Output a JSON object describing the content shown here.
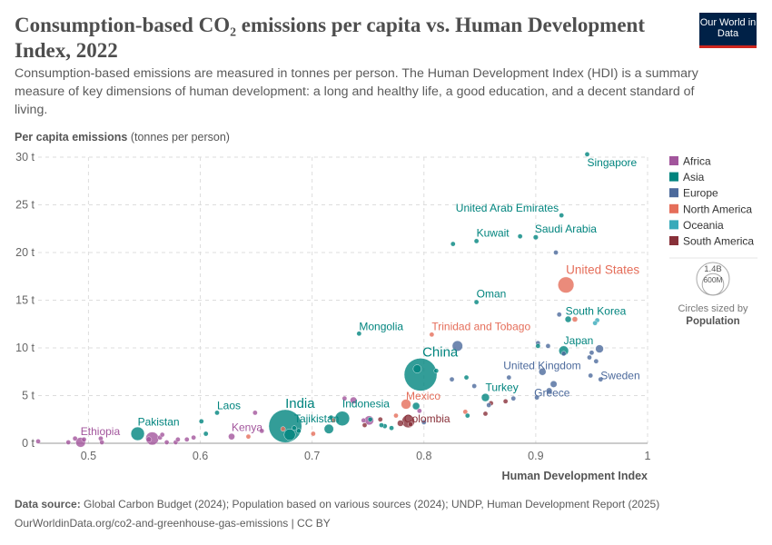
{
  "header": {
    "title": "Consumption-based CO₂ emissions per capita vs. Human Development Index, 2022",
    "subtitle": "Consumption-based emissions are measured in tonnes per person. The Human Development Index (HDI) is a summary measure of key dimensions of human development: a long and healthy life, a good education, and a decent standard of living.",
    "logo_text": "Our World in Data"
  },
  "footer": {
    "source_label": "Data source:",
    "source": "Global Carbon Budget (2024); Population based on various sources (2024); UNDP, Human Development Report (2025)",
    "url": "OurWorldinData.org/co2-and-greenhouse-gas-emissions | CC BY"
  },
  "chart_data": {
    "type": "scatter",
    "title": "Consumption-based CO₂ emissions per capita vs. Human Development Index, 2022",
    "ylabel_bold": "Per capita emissions",
    "ylabel_unit": "(tonnes per person)",
    "xlabel": "Human Development Index",
    "xlim": [
      0.455,
      1
    ],
    "ylim": [
      0,
      30
    ],
    "x_ticks": [
      "0.5",
      "0.6",
      "0.7",
      "0.8",
      "0.9",
      "1"
    ],
    "y_ticks": [
      "0 t",
      "5 t",
      "10 t",
      "15 t",
      "20 t",
      "25 t",
      "30 t"
    ],
    "grid": true,
    "legend_position": "right",
    "regions": [
      {
        "name": "Africa",
        "color": "#a2559c"
      },
      {
        "name": "Asia",
        "color": "#00847e"
      },
      {
        "name": "Europe",
        "color": "#4c6a9c"
      },
      {
        "name": "North America",
        "color": "#e56e5a"
      },
      {
        "name": "Oceania",
        "color": "#38aaba"
      },
      {
        "name": "South America",
        "color": "#883039"
      }
    ],
    "size_legend": {
      "title": "Circles sized by",
      "variable": "Population",
      "values": [
        "1.4B",
        "600M"
      ]
    },
    "points": [
      {
        "label": "Singapore",
        "region": "Asia",
        "x": 0.946,
        "y": 30.3,
        "pop_m": 6
      },
      {
        "label": "United Arab Emirates",
        "region": "Asia",
        "x": 0.923,
        "y": 23.9,
        "pop_m": 10
      },
      {
        "label": "Kuwait",
        "region": "Asia",
        "x": 0.847,
        "y": 21.2,
        "pop_m": 4
      },
      {
        "label": "Saudi Arabia",
        "region": "Asia",
        "x": 0.9,
        "y": 21.6,
        "pop_m": 33
      },
      {
        "label": "United States",
        "region": "North America",
        "x": 0.927,
        "y": 16.6,
        "pop_m": 335
      },
      {
        "label": "Oman",
        "region": "Asia",
        "x": 0.847,
        "y": 14.8,
        "pop_m": 5
      },
      {
        "label": "South Korea",
        "region": "Asia",
        "x": 0.929,
        "y": 13.0,
        "pop_m": 52
      },
      {
        "label": "Mongolia",
        "region": "Asia",
        "x": 0.742,
        "y": 11.5,
        "pop_m": 3
      },
      {
        "label": "Trinidad and Tobago",
        "region": "North America",
        "x": 0.807,
        "y": 11.4,
        "pop_m": 1.5
      },
      {
        "label": "China",
        "region": "Asia",
        "x": 0.797,
        "y": 7.2,
        "pop_m": 1410
      },
      {
        "label": "Japan",
        "region": "Asia",
        "x": 0.925,
        "y": 9.7,
        "pop_m": 124
      },
      {
        "label": "United Kingdom",
        "region": "Europe",
        "x": 0.906,
        "y": 7.5,
        "pop_m": 68
      },
      {
        "label": "Sweden",
        "region": "Europe",
        "x": 0.958,
        "y": 6.7,
        "pop_m": 10
      },
      {
        "label": "Greece",
        "region": "Europe",
        "x": 0.901,
        "y": 4.8,
        "pop_m": 10
      },
      {
        "label": "Turkey",
        "region": "Asia",
        "x": 0.855,
        "y": 4.8,
        "pop_m": 85
      },
      {
        "label": "Mexico",
        "region": "North America",
        "x": 0.784,
        "y": 4.1,
        "pop_m": 128
      },
      {
        "label": "Colombia",
        "region": "South America",
        "x": 0.779,
        "y": 2.1,
        "pop_m": 52
      },
      {
        "label": "Indonesia",
        "region": "Asia",
        "x": 0.727,
        "y": 2.6,
        "pop_m": 277
      },
      {
        "label": "India",
        "region": "Asia",
        "x": 0.676,
        "y": 1.8,
        "pop_m": 1430
      },
      {
        "label": "Tajikistan",
        "region": "Asia",
        "x": 0.684,
        "y": 1.6,
        "pop_m": 10
      },
      {
        "label": "Pakistan",
        "region": "Asia",
        "x": 0.544,
        "y": 1.0,
        "pop_m": 240
      },
      {
        "label": "Ethiopia",
        "region": "Africa",
        "x": 0.493,
        "y": 0.1,
        "pop_m": 126
      },
      {
        "label": "Kenya",
        "region": "Africa",
        "x": 0.628,
        "y": 0.7,
        "pop_m": 55
      },
      {
        "label": "Laos",
        "region": "Asia",
        "x": 0.615,
        "y": 3.2,
        "pop_m": 7.6
      },
      {
        "region": "Asia",
        "x": 0.826,
        "y": 20.9,
        "pop_m": 1.5
      },
      {
        "region": "Asia",
        "x": 0.886,
        "y": 21.7,
        "pop_m": 3
      },
      {
        "region": "Europe",
        "x": 0.918,
        "y": 20.0,
        "pop_m": 0.6
      },
      {
        "region": "Europe",
        "x": 0.921,
        "y": 13.5,
        "pop_m": 2
      },
      {
        "region": "North America",
        "x": 0.935,
        "y": 13.0,
        "pop_m": 39
      },
      {
        "region": "Oceania",
        "x": 0.955,
        "y": 12.9,
        "pop_m": 27
      },
      {
        "region": "Oceania",
        "x": 0.953,
        "y": 12.6,
        "pop_m": 5
      },
      {
        "region": "Europe",
        "x": 0.83,
        "y": 10.2,
        "pop_m": 144
      },
      {
        "region": "Europe",
        "x": 0.957,
        "y": 9.9,
        "pop_m": 84
      },
      {
        "region": "Europe",
        "x": 0.902,
        "y": 10.5,
        "pop_m": 3
      },
      {
        "region": "Asia",
        "x": 0.902,
        "y": 10.2,
        "pop_m": 3
      },
      {
        "region": "Europe",
        "x": 0.911,
        "y": 10.2,
        "pop_m": 2
      },
      {
        "region": "Europe",
        "x": 0.925,
        "y": 9.4,
        "pop_m": 5
      },
      {
        "region": "Europe",
        "x": 0.95,
        "y": 9.5,
        "pop_m": 5
      },
      {
        "region": "Europe",
        "x": 0.948,
        "y": 9.0,
        "pop_m": 5
      },
      {
        "region": "Europe",
        "x": 0.954,
        "y": 8.6,
        "pop_m": 6
      },
      {
        "region": "Asia",
        "x": 0.794,
        "y": 7.8,
        "pop_m": 90
      },
      {
        "region": "Asia",
        "x": 0.811,
        "y": 7.6,
        "pop_m": 8
      },
      {
        "region": "Europe",
        "x": 0.949,
        "y": 7.1,
        "pop_m": 17
      },
      {
        "region": "Europe",
        "x": 0.876,
        "y": 6.9,
        "pop_m": 2
      },
      {
        "region": "Europe",
        "x": 0.825,
        "y": 6.7,
        "pop_m": 2
      },
      {
        "region": "Asia",
        "x": 0.838,
        "y": 6.9,
        "pop_m": 3
      },
      {
        "region": "Europe",
        "x": 0.845,
        "y": 6.0,
        "pop_m": 5
      },
      {
        "region": "Europe",
        "x": 0.916,
        "y": 6.2,
        "pop_m": 59
      },
      {
        "region": "Europe",
        "x": 0.912,
        "y": 5.5,
        "pop_m": 48
      },
      {
        "region": "Europe",
        "x": 0.88,
        "y": 4.7,
        "pop_m": 3
      },
      {
        "region": "Europe",
        "x": 0.858,
        "y": 4.0,
        "pop_m": 3
      },
      {
        "region": "South America",
        "x": 0.86,
        "y": 4.2,
        "pop_m": 19
      },
      {
        "region": "South America",
        "x": 0.873,
        "y": 4.4,
        "pop_m": 3
      },
      {
        "region": "South America",
        "x": 0.855,
        "y": 3.1,
        "pop_m": 3
      },
      {
        "region": "North America",
        "x": 0.837,
        "y": 3.3,
        "pop_m": 3
      },
      {
        "region": "Asia",
        "x": 0.839,
        "y": 2.9,
        "pop_m": 3
      },
      {
        "region": "Asia",
        "x": 0.793,
        "y": 3.9,
        "pop_m": 70
      },
      {
        "region": "Africa",
        "x": 0.796,
        "y": 3.4,
        "pop_m": 1
      },
      {
        "region": "South America",
        "x": 0.786,
        "y": 2.3,
        "pop_m": 216
      },
      {
        "region": "South America",
        "x": 0.788,
        "y": 2.0,
        "pop_m": 10
      },
      {
        "region": "South America",
        "x": 0.761,
        "y": 2.5,
        "pop_m": 3
      },
      {
        "region": "North America",
        "x": 0.775,
        "y": 2.9,
        "pop_m": 3
      },
      {
        "region": "Europe",
        "x": 0.8,
        "y": 2.2,
        "pop_m": 2
      },
      {
        "region": "Asia",
        "x": 0.765,
        "y": 1.8,
        "pop_m": 30
      },
      {
        "region": "Asia",
        "x": 0.771,
        "y": 1.6,
        "pop_m": 3
      },
      {
        "region": "Africa",
        "x": 0.455,
        "y": 0.2,
        "pop_m": 5
      },
      {
        "region": "Africa",
        "x": 0.482,
        "y": 0.1,
        "pop_m": 8
      },
      {
        "region": "Africa",
        "x": 0.488,
        "y": 0.5,
        "pop_m": 10
      },
      {
        "region": "Africa",
        "x": 0.496,
        "y": 0.4,
        "pop_m": 8
      },
      {
        "region": "Africa",
        "x": 0.511,
        "y": 0.5,
        "pop_m": 5
      },
      {
        "region": "Africa",
        "x": 0.512,
        "y": 0.1,
        "pop_m": 5
      },
      {
        "region": "Africa",
        "x": 0.557,
        "y": 0.5,
        "pop_m": 224
      },
      {
        "region": "Africa",
        "x": 0.554,
        "y": 0.4,
        "pop_m": 40
      },
      {
        "region": "Africa",
        "x": 0.564,
        "y": 0.6,
        "pop_m": 15
      },
      {
        "region": "Africa",
        "x": 0.566,
        "y": 0.9,
        "pop_m": 5
      },
      {
        "region": "Africa",
        "x": 0.57,
        "y": 0.1,
        "pop_m": 5
      },
      {
        "region": "Africa",
        "x": 0.578,
        "y": 0.1,
        "pop_m": 20
      },
      {
        "region": "Africa",
        "x": 0.58,
        "y": 0.4,
        "pop_m": 10
      },
      {
        "region": "Africa",
        "x": 0.588,
        "y": 0.4,
        "pop_m": 5
      },
      {
        "region": "Africa",
        "x": 0.594,
        "y": 0.6,
        "pop_m": 5
      },
      {
        "region": "Asia",
        "x": 0.601,
        "y": 2.3,
        "pop_m": 5
      },
      {
        "region": "Asia",
        "x": 0.605,
        "y": 1.0,
        "pop_m": 30
      },
      {
        "region": "North America",
        "x": 0.643,
        "y": 0.7,
        "pop_m": 3
      },
      {
        "region": "Africa",
        "x": 0.649,
        "y": 3.2,
        "pop_m": 3
      },
      {
        "region": "Africa",
        "x": 0.655,
        "y": 1.3,
        "pop_m": 3
      },
      {
        "region": "North America",
        "x": 0.674,
        "y": 1.5,
        "pop_m": 3
      },
      {
        "region": "Asia",
        "x": 0.68,
        "y": 0.9,
        "pop_m": 171
      },
      {
        "region": "Asia",
        "x": 0.688,
        "y": 1.3,
        "pop_m": 10
      },
      {
        "region": "North America",
        "x": 0.701,
        "y": 1.0,
        "pop_m": 3
      },
      {
        "region": "Asia",
        "x": 0.715,
        "y": 1.5,
        "pop_m": 117
      },
      {
        "region": "Asia",
        "x": 0.717,
        "y": 2.7,
        "pop_m": 5
      },
      {
        "region": "North America",
        "x": 0.719,
        "y": 2.4,
        "pop_m": 3
      },
      {
        "region": "Africa",
        "x": 0.729,
        "y": 4.7,
        "pop_m": 3
      },
      {
        "region": "Africa",
        "x": 0.737,
        "y": 4.5,
        "pop_m": 60
      },
      {
        "region": "Africa",
        "x": 0.746,
        "y": 2.4,
        "pop_m": 5
      },
      {
        "region": "Africa",
        "x": 0.751,
        "y": 2.4,
        "pop_m": 112
      },
      {
        "region": "Asia",
        "x": 0.752,
        "y": 2.5,
        "pop_m": 5
      },
      {
        "region": "South America",
        "x": 0.747,
        "y": 1.9,
        "pop_m": 3
      },
      {
        "region": "Asia",
        "x": 0.762,
        "y": 1.9,
        "pop_m": 3
      }
    ]
  }
}
